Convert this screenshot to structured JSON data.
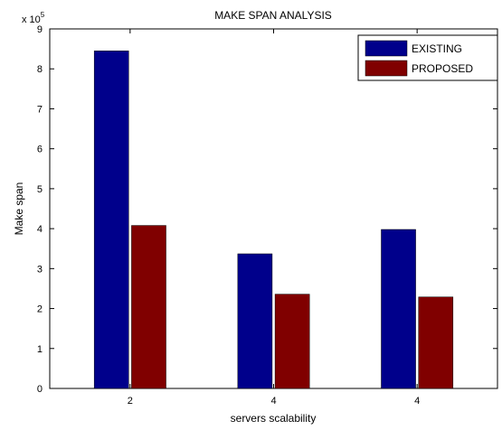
{
  "chart_data": {
    "type": "bar",
    "title": "MAKE SPAN ANALYSIS",
    "xlabel": "servers scalability",
    "ylabel": "Make span",
    "exponent_base": "x 10",
    "exponent_power": "5",
    "categories": [
      "2",
      "4",
      "4"
    ],
    "ylim": [
      0,
      9
    ],
    "yticks": [
      "0",
      "1",
      "2",
      "3",
      "4",
      "5",
      "6",
      "7",
      "8",
      "9"
    ],
    "series": [
      {
        "name": "EXISTING",
        "color": "#00008B",
        "values": [
          8.45,
          3.37,
          3.98
        ]
      },
      {
        "name": "PROPOSED",
        "color": "#800000",
        "values": [
          4.08,
          2.36,
          2.29
        ]
      }
    ],
    "legend": "top-right",
    "grid": false
  }
}
